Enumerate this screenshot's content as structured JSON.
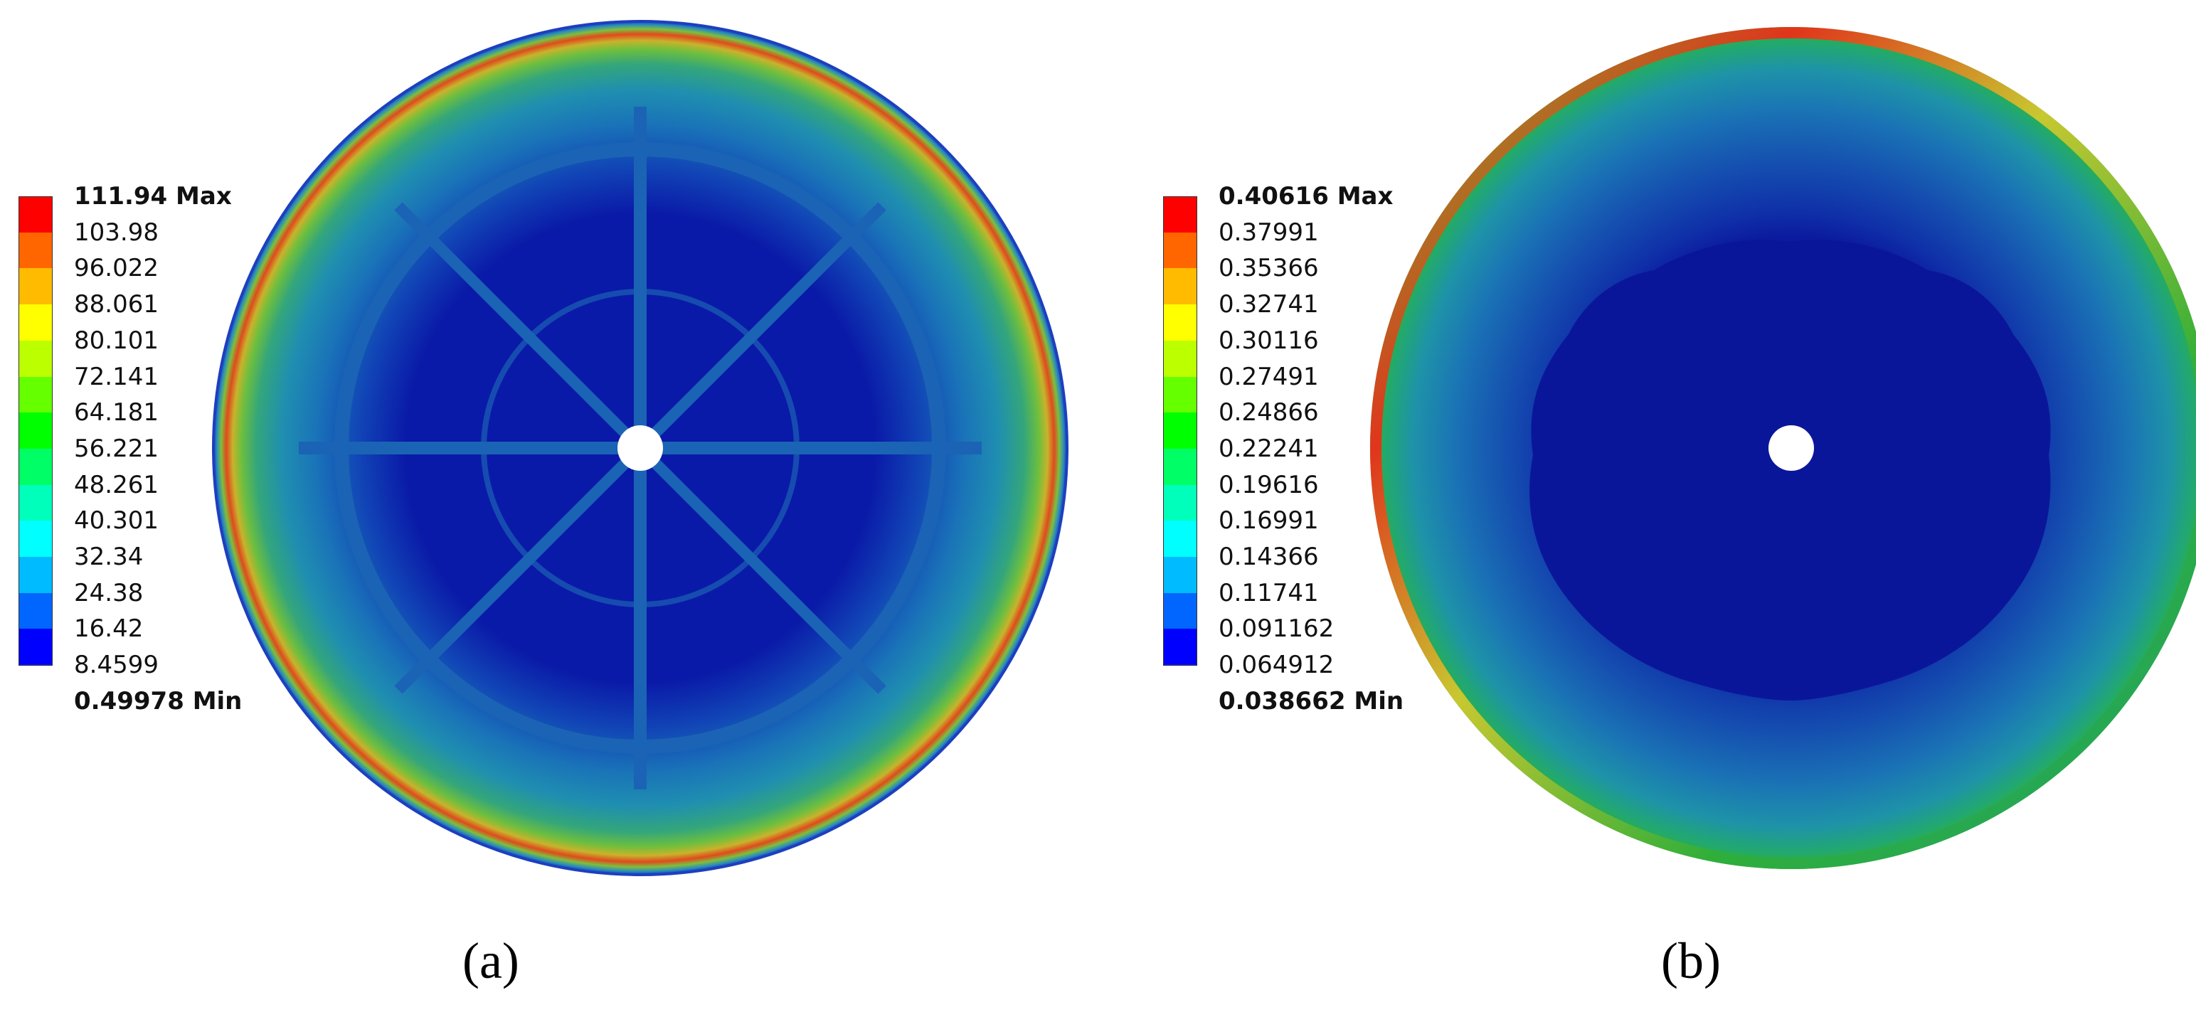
{
  "panels": [
    {
      "caption": "(a)",
      "legend": {
        "max_label": "111.94 Max",
        "ticks": [
          "103.98",
          "96.022",
          "88.061",
          "80.101",
          "72.141",
          "64.181",
          "56.221",
          "48.261",
          "40.301",
          "32.34",
          "24.38",
          "16.42",
          "8.4599"
        ],
        "min_label": "0.49978 Min"
      }
    },
    {
      "caption": "(b)",
      "legend": {
        "max_label": "0.40616 Max",
        "ticks": [
          "0.37991",
          "0.35366",
          "0.32741",
          "0.30116",
          "0.27491",
          "0.24866",
          "0.22241",
          "0.19616",
          "0.16991",
          "0.14366",
          "0.11741",
          "0.091162",
          "0.064912"
        ],
        "min_label": "0.038662 Min"
      }
    }
  ],
  "colormap": [
    "#ff0000",
    "#ff6600",
    "#ffbb00",
    "#ffff00",
    "#bbff00",
    "#66ff00",
    "#00ff00",
    "#00ff66",
    "#00ffbb",
    "#00ffff",
    "#00bbff",
    "#0066ff",
    "#0000ff"
  ]
}
